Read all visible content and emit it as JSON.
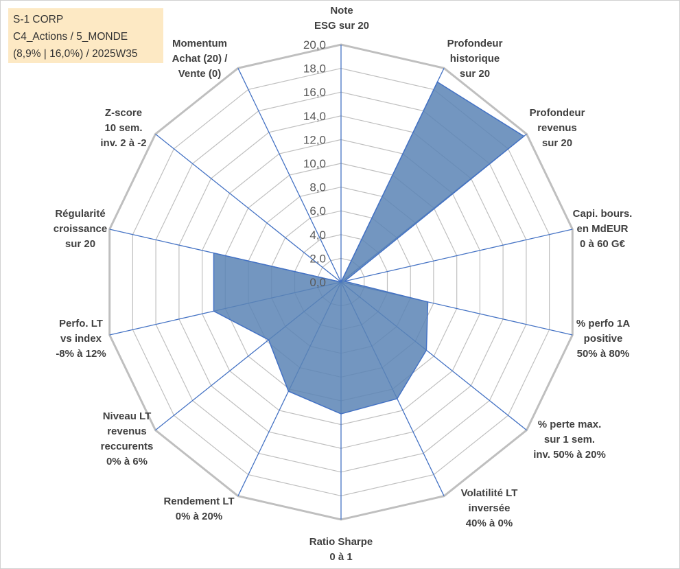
{
  "info_box": {
    "line1": "S-1 CORP",
    "line2": "C4_Actions / 5_MONDE",
    "line3": "(8,9% | 16,0%) / 2025W35"
  },
  "chart_data": {
    "type": "radar",
    "title": "",
    "rmin": 0,
    "rmax": 20,
    "ticks": [
      "0,0",
      "2,0",
      "4,0",
      "6,0",
      "8,0",
      "10,0",
      "12,0",
      "14,0",
      "16,0",
      "18,0",
      "20,0"
    ],
    "grid": true,
    "fill_color": "#5b84b5",
    "grid_color": "#bfbfbf",
    "axis_color": "#4472c4",
    "categories": [
      [
        "Note",
        "ESG sur 20"
      ],
      [
        "Profondeur",
        "historique",
        "sur 20"
      ],
      [
        "Profondeur",
        "revenus",
        "sur 20"
      ],
      [
        "Capi. bours.",
        "en MdEUR",
        "0 à 60 G€"
      ],
      [
        "% perfo 1A",
        "positive",
        "50% à 80%"
      ],
      [
        "% perte max.",
        "sur 1 sem.",
        "inv. 50% à 20%"
      ],
      [
        "Volatilité LT",
        "inversée",
        "40% à 0%"
      ],
      [
        "Ratio Sharpe",
        "0 à 1"
      ],
      [
        "Rendement LT",
        "0% à 20%"
      ],
      [
        "Niveau LT",
        "revenus",
        "reccurents",
        "0% à 6%"
      ],
      [
        "Perfo. LT",
        "vs index",
        "-8% à 12%"
      ],
      [
        "Régularité",
        "croissance",
        "sur 20"
      ],
      [
        "Z-score",
        "10 sem.",
        "inv. 2 à -2"
      ],
      [
        "Momentum",
        "Achat (20) /",
        "Vente (0)"
      ]
    ],
    "values": [
      0,
      18.7,
      19.7,
      0.3,
      7.5,
      9.2,
      10.9,
      11.1,
      10.2,
      7.8,
      11.0,
      11.0,
      0,
      0
    ]
  }
}
